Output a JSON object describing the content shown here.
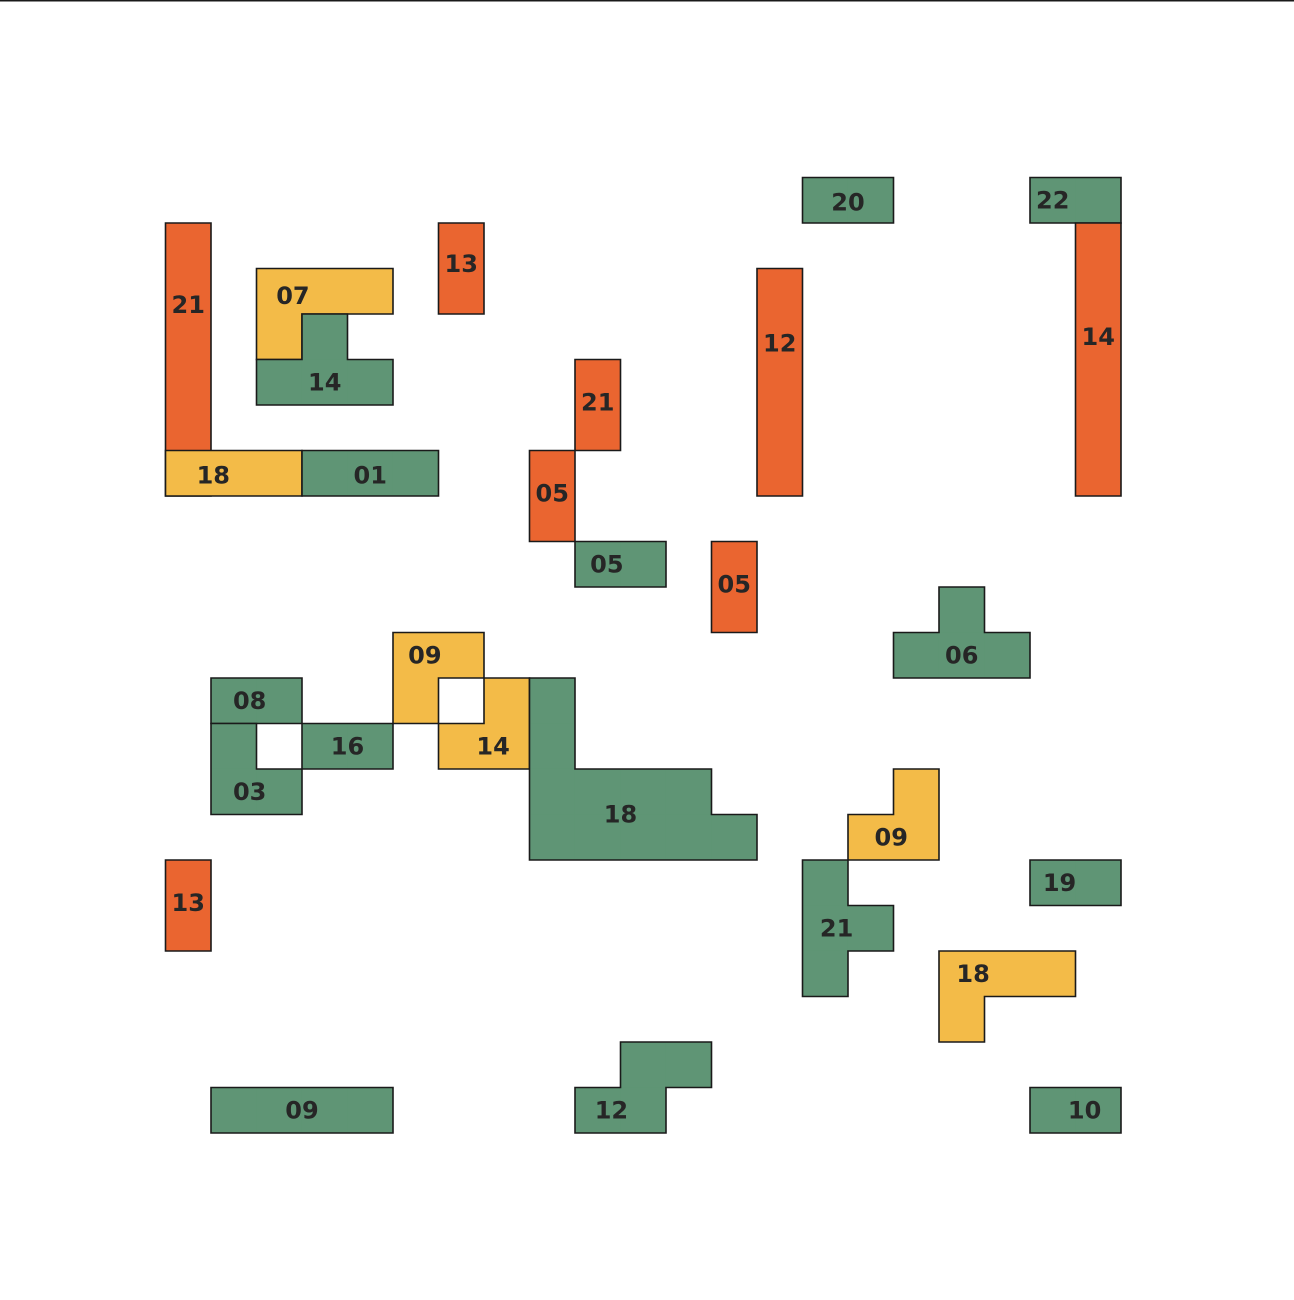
{
  "palette": {
    "orange": "#ea6530",
    "yellow": "#f3bb48",
    "green": "#5f9575",
    "outline": "#1a1a1a",
    "label": "#262626"
  },
  "pieces": [
    {
      "label": "21",
      "color": "orange"
    },
    {
      "label": "07",
      "color": "yellow"
    },
    {
      "label": "14",
      "color": "green"
    },
    {
      "label": "13",
      "color": "orange"
    },
    {
      "label": "18",
      "color": "yellow"
    },
    {
      "label": "01",
      "color": "green"
    },
    {
      "label": "21",
      "color": "orange"
    },
    {
      "label": "05",
      "color": "orange"
    },
    {
      "label": "05",
      "color": "green"
    },
    {
      "label": "12",
      "color": "orange"
    },
    {
      "label": "20",
      "color": "green"
    },
    {
      "label": "22",
      "color": "green"
    },
    {
      "label": "14",
      "color": "orange"
    },
    {
      "label": "05",
      "color": "orange"
    },
    {
      "label": "06",
      "color": "green"
    },
    {
      "label": "08",
      "color": "green"
    },
    {
      "label": "03",
      "color": "green"
    },
    {
      "label": "16",
      "color": "green"
    },
    {
      "label": "09",
      "color": "yellow"
    },
    {
      "label": "14",
      "color": "yellow"
    },
    {
      "label": "18",
      "color": "green"
    },
    {
      "label": "13",
      "color": "orange"
    },
    {
      "label": "09",
      "color": "yellow"
    },
    {
      "label": "21",
      "color": "green"
    },
    {
      "label": "19",
      "color": "green"
    },
    {
      "label": "18",
      "color": "yellow"
    },
    {
      "label": "09",
      "color": "green"
    },
    {
      "label": "12",
      "color": "green"
    },
    {
      "label": "10",
      "color": "green"
    }
  ]
}
